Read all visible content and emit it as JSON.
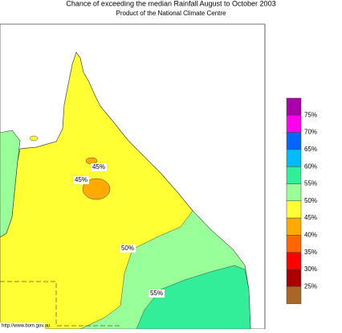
{
  "header": {
    "title": "Chance of exceeding the median Rainfall August to October 2003",
    "subtitle": "Product of the National Climate Centre"
  },
  "legend": {
    "colors": [
      "#aa00aa",
      "#ff00ee",
      "#0066ff",
      "#00bbff",
      "#33ee99",
      "#99ff99",
      "#ffff33",
      "#ffaa00",
      "#ff6600",
      "#ff0000",
      "#aa0000",
      "#aa6622"
    ],
    "labels": [
      "75%",
      "70%",
      "65%",
      "60%",
      "55%",
      "50%",
      "45%",
      "40%",
      "35%",
      "30%",
      "25%"
    ]
  },
  "map_labels": [
    "45%",
    "45%",
    "50%",
    "55%"
  ],
  "credit": "http://www.bom.gov.au"
}
